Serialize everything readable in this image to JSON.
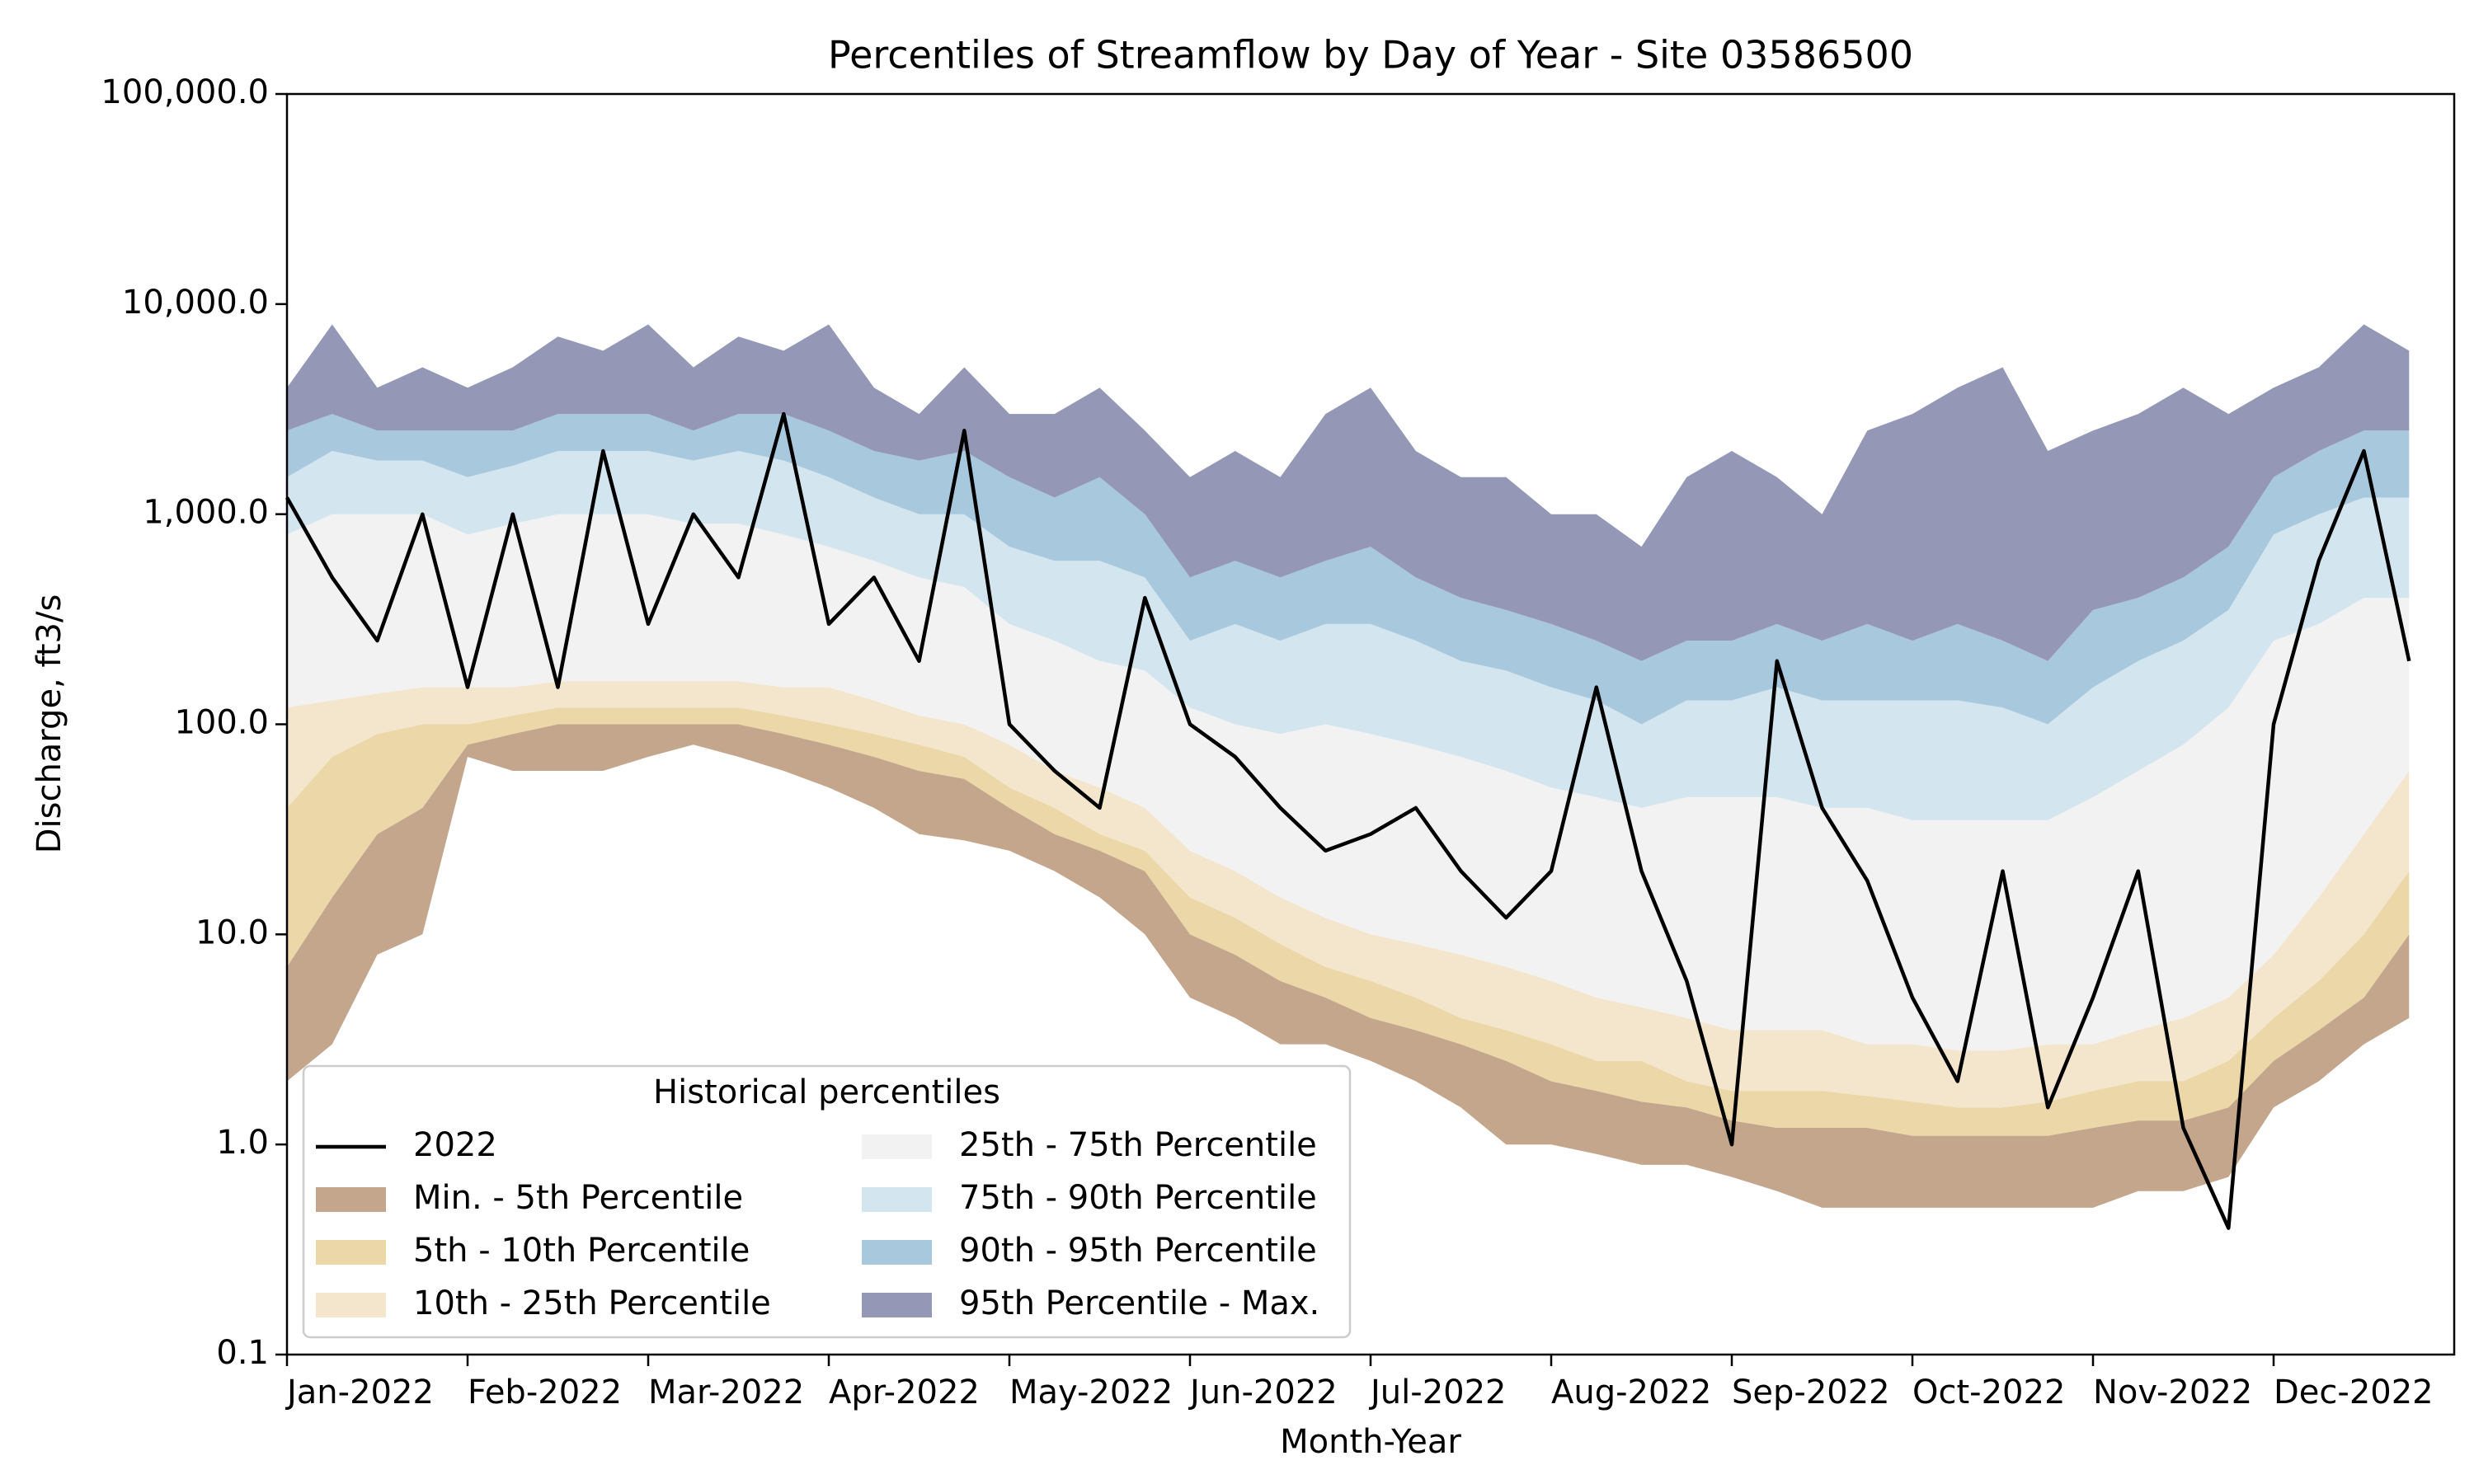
{
  "chart_data": {
    "type": "area",
    "title": "Percentiles of Streamflow by Day of Year - Site 03586500",
    "x_label": "Month-Year",
    "y_label": "Discharge, ft3/s",
    "log_scale": true,
    "legend_title": "Historical percentiles",
    "legend_position": "lower left",
    "categories": [
      "Jan-2022",
      null,
      null,
      null,
      "Feb-2022",
      null,
      null,
      null,
      "Mar-2022",
      null,
      null,
      null,
      "Apr-2022",
      null,
      null,
      null,
      "May-2022",
      null,
      null,
      null,
      "Jun-2022",
      null,
      null,
      null,
      "Jul-2022",
      null,
      null,
      null,
      "Aug-2022",
      null,
      null,
      null,
      "Sep-2022",
      null,
      null,
      null,
      "Oct-2022",
      null,
      null,
      null,
      "Nov-2022",
      null,
      null,
      null,
      "Dec-2022",
      null,
      null,
      null
    ],
    "ylim": [
      0.1,
      100000
    ],
    "yticks": [
      0.1,
      {
        "value": 1,
        "label": "1.0"
      },
      {
        "value": 10,
        "label": "10.0"
      },
      {
        "value": 100,
        "label": "100.0"
      },
      {
        "value": 1000,
        "label": "1,000.0"
      },
      {
        "value": 10000,
        "label": "10,000.0"
      },
      {
        "value": 100000,
        "label": "100,000.0"
      }
    ],
    "series": [
      {
        "name": "2022",
        "style": "line",
        "color": "#000000",
        "values": [
          1200,
          500,
          250,
          1000,
          150,
          1000,
          150,
          2000,
          300,
          1000,
          500,
          3000,
          300,
          500,
          200,
          2500,
          100,
          60,
          40,
          400,
          100,
          70,
          40,
          25,
          30,
          40,
          20,
          12,
          20,
          150,
          20,
          6,
          1.0,
          200,
          40,
          18,
          5,
          2,
          20,
          1.5,
          5,
          20,
          1.2,
          0.4,
          100,
          600,
          2000,
          200
        ]
      },
      {
        "name": "Min. - 5th Percentile",
        "style": "band",
        "color": "#c4a68c",
        "low": [
          2,
          3,
          8,
          10,
          70,
          60,
          60,
          60,
          70,
          80,
          70,
          60,
          50,
          40,
          30,
          28,
          25,
          20,
          15,
          10,
          5,
          4,
          3,
          3,
          2.5,
          2,
          1.5,
          1,
          1,
          0.9,
          0.8,
          0.8,
          0.7,
          0.6,
          0.5,
          0.5,
          0.5,
          0.5,
          0.5,
          0.5,
          0.5,
          0.6,
          0.6,
          0.7,
          1.5,
          2,
          3,
          4
        ],
        "values": [
          7,
          15,
          30,
          40,
          80,
          90,
          100,
          100,
          100,
          100,
          100,
          90,
          80,
          70,
          60,
          55,
          40,
          30,
          25,
          20,
          10,
          8,
          6,
          5,
          4,
          3.5,
          3,
          2.5,
          2,
          1.8,
          1.6,
          1.5,
          1.3,
          1.2,
          1.2,
          1.2,
          1.1,
          1.1,
          1.1,
          1.1,
          1.2,
          1.3,
          1.3,
          1.5,
          2.5,
          3.5,
          5,
          10
        ]
      },
      {
        "name": "5th - 10th Percentile",
        "style": "band",
        "color": "#ebd7a7",
        "values": [
          40,
          70,
          90,
          100,
          100,
          110,
          120,
          120,
          120,
          120,
          120,
          110,
          100,
          90,
          80,
          70,
          50,
          40,
          30,
          25,
          15,
          12,
          9,
          7,
          6,
          5,
          4,
          3.5,
          3,
          2.5,
          2.5,
          2,
          1.8,
          1.8,
          1.8,
          1.7,
          1.6,
          1.5,
          1.5,
          1.6,
          1.8,
          2,
          2,
          2.5,
          4,
          6,
          10,
          20
        ]
      },
      {
        "name": "10th - 25th Percentile",
        "style": "band",
        "color": "#f3e6cc",
        "values": [
          120,
          130,
          140,
          150,
          150,
          150,
          160,
          160,
          160,
          160,
          160,
          150,
          150,
          130,
          110,
          100,
          80,
          60,
          50,
          40,
          25,
          20,
          15,
          12,
          10,
          9,
          8,
          7,
          6,
          5,
          4.5,
          4,
          3.5,
          3.5,
          3.5,
          3,
          3,
          2.8,
          2.8,
          3,
          3,
          3.5,
          4,
          5,
          8,
          15,
          30,
          60
        ]
      },
      {
        "name": "25th - 75th Percentile",
        "style": "band",
        "color": "#f2f2f2",
        "values": [
          800,
          1000,
          1000,
          1000,
          800,
          900,
          1000,
          1000,
          1000,
          900,
          900,
          800,
          700,
          600,
          500,
          450,
          300,
          250,
          200,
          180,
          120,
          100,
          90,
          100,
          90,
          80,
          70,
          60,
          50,
          45,
          40,
          45,
          45,
          45,
          40,
          40,
          35,
          35,
          35,
          35,
          45,
          60,
          80,
          120,
          250,
          300,
          400,
          400
        ]
      },
      {
        "name": "75th - 90th Percentile",
        "style": "band",
        "color": "#d3e5ee",
        "values": [
          1500,
          2000,
          1800,
          1800,
          1500,
          1700,
          2000,
          2000,
          2000,
          1800,
          2000,
          1800,
          1500,
          1200,
          1000,
          1000,
          700,
          600,
          600,
          500,
          250,
          300,
          250,
          300,
          300,
          250,
          200,
          180,
          150,
          130,
          100,
          130,
          130,
          150,
          130,
          130,
          130,
          130,
          120,
          100,
          150,
          200,
          250,
          350,
          800,
          1000,
          1200,
          1200
        ]
      },
      {
        "name": "90th - 95th Percentile",
        "style": "band",
        "color": "#a8c8dd",
        "values": [
          2500,
          3000,
          2500,
          2500,
          2500,
          2500,
          3000,
          3000,
          3000,
          2500,
          3000,
          3000,
          2500,
          2000,
          1800,
          2000,
          1500,
          1200,
          1500,
          1000,
          500,
          600,
          500,
          600,
          700,
          500,
          400,
          350,
          300,
          250,
          200,
          250,
          250,
          300,
          250,
          300,
          250,
          300,
          250,
          200,
          350,
          400,
          500,
          700,
          1500,
          2000,
          2500,
          2500
        ]
      },
      {
        "name": "95th Percentile - Max.",
        "style": "band",
        "color": "#9497b5",
        "values": [
          4000,
          8000,
          4000,
          5000,
          4000,
          5000,
          7000,
          6000,
          8000,
          5000,
          7000,
          6000,
          8000,
          4000,
          3000,
          5000,
          3000,
          3000,
          4000,
          2500,
          1500,
          2000,
          1500,
          3000,
          4000,
          2000,
          1500,
          1500,
          1000,
          1000,
          700,
          1500,
          2000,
          1500,
          1000,
          2500,
          3000,
          4000,
          5000,
          2000,
          2500,
          3000,
          4000,
          3000,
          4000,
          5000,
          8000,
          6000
        ]
      }
    ]
  }
}
